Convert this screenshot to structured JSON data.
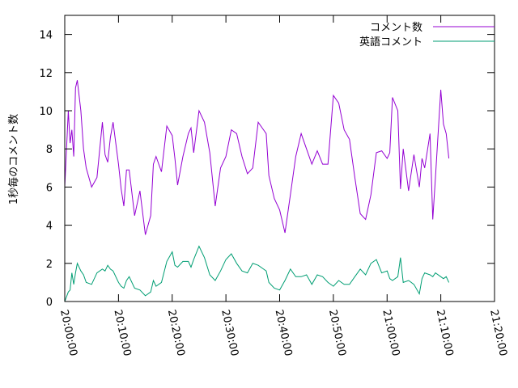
{
  "chart_data": {
    "type": "line",
    "title": "",
    "xlabel": "",
    "ylabel": "1秒毎のコメント数",
    "xlim": [
      "20:00:00",
      "21:20:00"
    ],
    "ylim": [
      0,
      15
    ],
    "x_ticks": [
      "20:00:00",
      "20:10:00",
      "20:20:00",
      "20:30:00",
      "20:40:00",
      "20:50:00",
      "21:00:00",
      "21:10:00",
      "21:20:00"
    ],
    "y_ticks": [
      0,
      2,
      4,
      6,
      8,
      10,
      12,
      14
    ],
    "grid": false,
    "legend_position": "top-right",
    "x": [
      "20:00:00",
      "20:00:40",
      "20:01:00",
      "20:01:20",
      "20:01:40",
      "20:02:00",
      "20:02:20",
      "20:03:00",
      "20:03:30",
      "20:04:00",
      "20:05:00",
      "20:06:00",
      "20:07:00",
      "20:07:30",
      "20:08:00",
      "20:08:30",
      "20:09:00",
      "20:10:00",
      "20:10:30",
      "20:11:00",
      "20:11:30",
      "20:12:00",
      "20:13:00",
      "20:14:00",
      "20:15:00",
      "20:16:00",
      "20:16:30",
      "20:17:00",
      "20:18:00",
      "20:19:00",
      "20:20:00",
      "20:20:30",
      "20:21:00",
      "20:22:00",
      "20:23:00",
      "20:23:30",
      "20:24:00",
      "20:25:00",
      "20:26:00",
      "20:27:00",
      "20:28:00",
      "20:29:00",
      "20:30:00",
      "20:31:00",
      "20:32:00",
      "20:33:00",
      "20:34:00",
      "20:35:00",
      "20:36:00",
      "20:37:00",
      "20:37:30",
      "20:38:00",
      "20:39:00",
      "20:40:00",
      "20:41:00",
      "20:42:00",
      "20:43:00",
      "20:44:00",
      "20:45:00",
      "20:46:00",
      "20:47:00",
      "20:48:00",
      "20:49:00",
      "20:50:00",
      "20:51:00",
      "20:52:00",
      "20:53:00",
      "20:54:00",
      "20:55:00",
      "20:56:00",
      "20:57:00",
      "20:58:00",
      "20:59:00",
      "21:00:00",
      "21:00:30",
      "21:01:00",
      "21:02:00",
      "21:02:30",
      "21:03:00",
      "21:04:00",
      "21:05:00",
      "21:06:00",
      "21:06:30",
      "21:07:00",
      "21:08:00",
      "21:08:30",
      "21:09:00",
      "21:10:00",
      "21:10:30",
      "21:11:00",
      "21:11:30"
    ],
    "series": [
      {
        "name": "コメント数",
        "color": "#9400d3",
        "values": [
          6.0,
          10.0,
          8.3,
          9.0,
          7.6,
          11.2,
          11.6,
          10.0,
          8.0,
          7.0,
          6.0,
          6.5,
          9.4,
          7.7,
          7.3,
          8.6,
          9.4,
          7.2,
          5.9,
          5.0,
          6.9,
          6.9,
          4.5,
          5.8,
          3.5,
          4.5,
          7.2,
          7.6,
          6.8,
          9.2,
          8.7,
          7.5,
          6.1,
          7.6,
          8.8,
          9.1,
          7.8,
          10.0,
          9.4,
          7.8,
          5.0,
          7.0,
          7.6,
          9.0,
          8.8,
          7.6,
          6.7,
          7.0,
          9.4,
          9.0,
          8.8,
          6.6,
          5.4,
          4.8,
          3.6,
          5.6,
          7.6,
          8.8,
          8.0,
          7.2,
          7.9,
          7.2,
          7.2,
          10.8,
          10.4,
          9.0,
          8.5,
          6.5,
          4.6,
          4.3,
          5.6,
          7.8,
          7.9,
          7.5,
          7.8,
          10.7,
          10.0,
          5.9,
          8.0,
          5.8,
          7.7,
          6.0,
          7.5,
          7.0,
          8.8,
          4.3,
          6.5,
          11.1,
          9.3,
          8.8,
          7.5
        ]
      },
      {
        "name": "英語コメント",
        "color": "#009e73",
        "values": [
          0.0,
          0.5,
          0.6,
          1.5,
          0.9,
          1.5,
          2.0,
          1.6,
          1.4,
          1.0,
          0.9,
          1.5,
          1.7,
          1.6,
          1.9,
          1.7,
          1.6,
          1.0,
          0.8,
          0.7,
          1.1,
          1.3,
          0.7,
          0.6,
          0.3,
          0.5,
          1.1,
          0.8,
          1.0,
          2.1,
          2.6,
          1.9,
          1.8,
          2.1,
          2.1,
          1.8,
          2.2,
          2.9,
          2.3,
          1.4,
          1.1,
          1.6,
          2.2,
          2.5,
          2.0,
          1.6,
          1.5,
          2.0,
          1.9,
          1.7,
          1.6,
          1.0,
          0.7,
          0.6,
          1.1,
          1.7,
          1.3,
          1.3,
          1.4,
          0.9,
          1.4,
          1.3,
          1.0,
          0.8,
          1.1,
          0.9,
          0.9,
          1.3,
          1.7,
          1.4,
          2.0,
          2.2,
          1.5,
          1.6,
          1.2,
          1.1,
          1.3,
          2.3,
          1.0,
          1.1,
          0.9,
          0.4,
          1.2,
          1.5,
          1.4,
          1.3,
          1.5,
          1.3,
          1.2,
          1.3,
          1.0
        ]
      }
    ]
  }
}
